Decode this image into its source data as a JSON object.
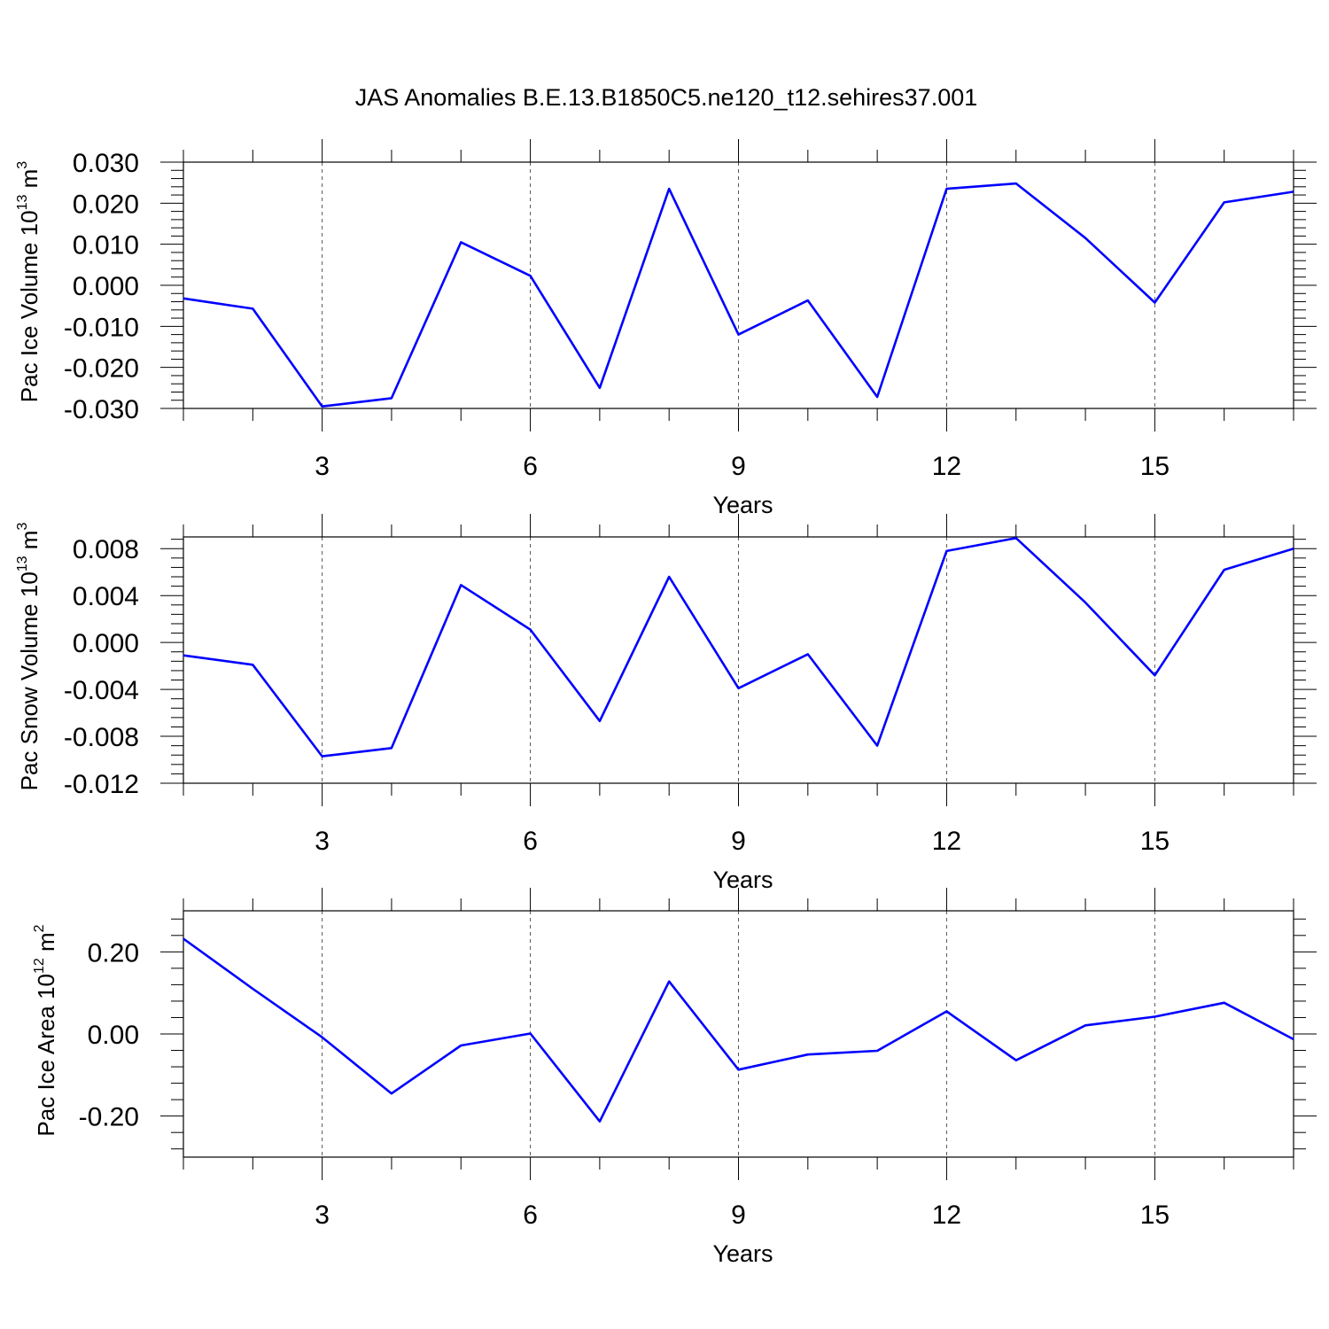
{
  "figure": {
    "title": "JAS Anomalies B.E.13.B1850C5.ne120_t12.sehires37.001"
  },
  "chart_data": [
    {
      "type": "line",
      "title": "",
      "xlabel": "Years",
      "ylabel": {
        "main": "Pac Ice Volume 10",
        "exp": "13",
        "unit": " m",
        "unit_exp": "3"
      },
      "xlim": [
        1,
        17
      ],
      "ylim": [
        -0.03,
        0.03
      ],
      "x_ticks": [
        3,
        6,
        9,
        12,
        15
      ],
      "y_ticks": [
        -0.03,
        -0.02,
        -0.01,
        0.0,
        0.01,
        0.02,
        0.03
      ],
      "y_tick_labels": [
        "-0.030",
        "-0.020",
        "-0.010",
        "0.000",
        "0.010",
        "0.020",
        "0.030"
      ],
      "color": "#0000ff",
      "x": [
        1,
        2,
        3,
        4,
        5,
        6,
        7,
        8,
        9,
        10,
        11,
        12,
        13,
        14,
        15,
        16,
        17
      ],
      "values": [
        -0.0032,
        -0.0057,
        -0.0295,
        -0.0275,
        0.0105,
        0.0023,
        -0.025,
        0.0235,
        -0.012,
        -0.0037,
        -0.0272,
        0.0235,
        0.0248,
        0.0115,
        -0.0042,
        0.0202,
        0.0228
      ]
    },
    {
      "type": "line",
      "title": "",
      "xlabel": "Years",
      "ylabel": {
        "main": "Pac Snow Volume 10",
        "exp": "13",
        "unit": " m",
        "unit_exp": "3"
      },
      "xlim": [
        1,
        17
      ],
      "ylim": [
        -0.012,
        0.009
      ],
      "x_ticks": [
        3,
        6,
        9,
        12,
        15
      ],
      "y_ticks": [
        -0.012,
        -0.008,
        -0.004,
        0.0,
        0.004,
        0.008
      ],
      "y_tick_labels": [
        "-0.012",
        "-0.008",
        "-0.004",
        "0.000",
        "0.004",
        "0.008"
      ],
      "color": "#0000ff",
      "x": [
        1,
        2,
        3,
        4,
        5,
        6,
        7,
        8,
        9,
        10,
        11,
        12,
        13,
        14,
        15,
        16,
        17
      ],
      "values": [
        -0.0011,
        -0.0019,
        -0.0097,
        -0.009,
        0.0049,
        0.0011,
        -0.0067,
        0.0056,
        -0.0039,
        -0.001,
        -0.0088,
        0.0078,
        0.0089,
        0.0034,
        -0.0028,
        0.0062,
        0.008
      ]
    },
    {
      "type": "line",
      "title": "",
      "xlabel": "Years",
      "ylabel": {
        "main": "Pac Ice Area 10",
        "exp": "12",
        "unit": " m",
        "unit_exp": "2"
      },
      "xlim": [
        1,
        17
      ],
      "ylim": [
        -0.3,
        0.3
      ],
      "x_ticks": [
        3,
        6,
        9,
        12,
        15
      ],
      "y_ticks": [
        -0.2,
        0.0,
        0.2
      ],
      "y_tick_labels": [
        "-0.20",
        "0.00",
        "0.20"
      ],
      "color": "#0000ff",
      "x": [
        1,
        2,
        3,
        4,
        5,
        6,
        7,
        8,
        9,
        10,
        11,
        12,
        13,
        14,
        15,
        16,
        17
      ],
      "values": [
        0.232,
        0.11,
        -0.008,
        -0.145,
        -0.028,
        0.001,
        -0.213,
        0.128,
        -0.087,
        -0.05,
        -0.041,
        0.055,
        -0.064,
        0.021,
        0.042,
        0.076,
        -0.013
      ]
    }
  ]
}
